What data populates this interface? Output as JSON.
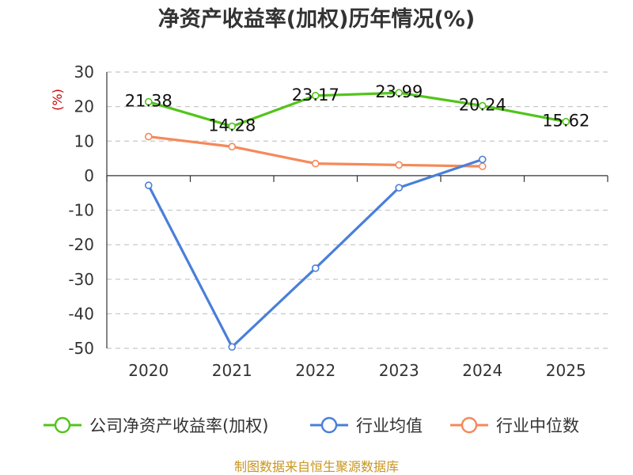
{
  "chart_data": {
    "type": "line",
    "title": "净资产收益率(加权)历年情况(%)",
    "ylabel": "(%)",
    "xlabel": "",
    "categories": [
      "2020",
      "2021",
      "2022",
      "2023",
      "2024",
      "2025"
    ],
    "ylim": [
      -50,
      30
    ],
    "yticks": [
      30,
      20,
      10,
      0,
      -10,
      -20,
      -30,
      -40,
      -50
    ],
    "grid": true,
    "legend_position": "bottom",
    "series": [
      {
        "name": "公司净资产收益率(加权)",
        "color": "#52c41a",
        "values": [
          21.38,
          14.28,
          23.17,
          23.99,
          20.24,
          15.62
        ],
        "labels": [
          "21.38",
          "14.28",
          "23.17",
          "23.99",
          "20.24",
          "15.62"
        ]
      },
      {
        "name": "行业均值",
        "color": "#4a7fd9",
        "values": [
          -2.8,
          -49.6,
          -26.8,
          -3.5,
          4.7,
          null
        ]
      },
      {
        "name": "行业中位数",
        "color": "#f5895a",
        "values": [
          11.3,
          8.4,
          3.5,
          3.1,
          2.7,
          null
        ]
      }
    ],
    "source": "制图数据来自恒生聚源数据库"
  }
}
